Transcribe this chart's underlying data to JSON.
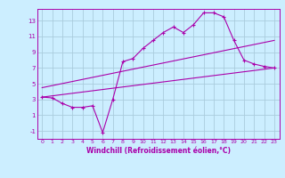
{
  "xlabel": "Windchill (Refroidissement éolien,°C)",
  "bg_color": "#cceeff",
  "grid_color": "#aaccdd",
  "line_color": "#aa00aa",
  "xlim": [
    -0.5,
    23.5
  ],
  "ylim": [
    -2.0,
    14.5
  ],
  "xticks": [
    0,
    1,
    2,
    3,
    4,
    5,
    6,
    7,
    8,
    9,
    10,
    11,
    12,
    13,
    14,
    15,
    16,
    17,
    18,
    19,
    20,
    21,
    22,
    23
  ],
  "yticks": [
    -1,
    1,
    3,
    5,
    7,
    9,
    11,
    13
  ],
  "main_series_x": [
    0,
    1,
    2,
    3,
    4,
    5,
    6,
    7,
    8,
    9,
    10,
    11,
    12,
    13,
    14,
    15,
    16,
    17,
    18,
    19,
    20,
    21,
    22,
    23
  ],
  "main_series_y": [
    3.3,
    3.2,
    2.5,
    2.0,
    2.0,
    2.2,
    -1.2,
    3.0,
    7.8,
    8.2,
    9.5,
    10.5,
    11.5,
    12.2,
    11.5,
    12.5,
    14.0,
    14.0,
    13.5,
    10.5,
    8.0,
    7.5,
    7.2,
    7.0
  ],
  "lower_line_x": [
    0,
    23
  ],
  "lower_line_y": [
    3.3,
    7.0
  ],
  "upper_line_x": [
    0,
    23
  ],
  "upper_line_y": [
    4.5,
    10.5
  ]
}
